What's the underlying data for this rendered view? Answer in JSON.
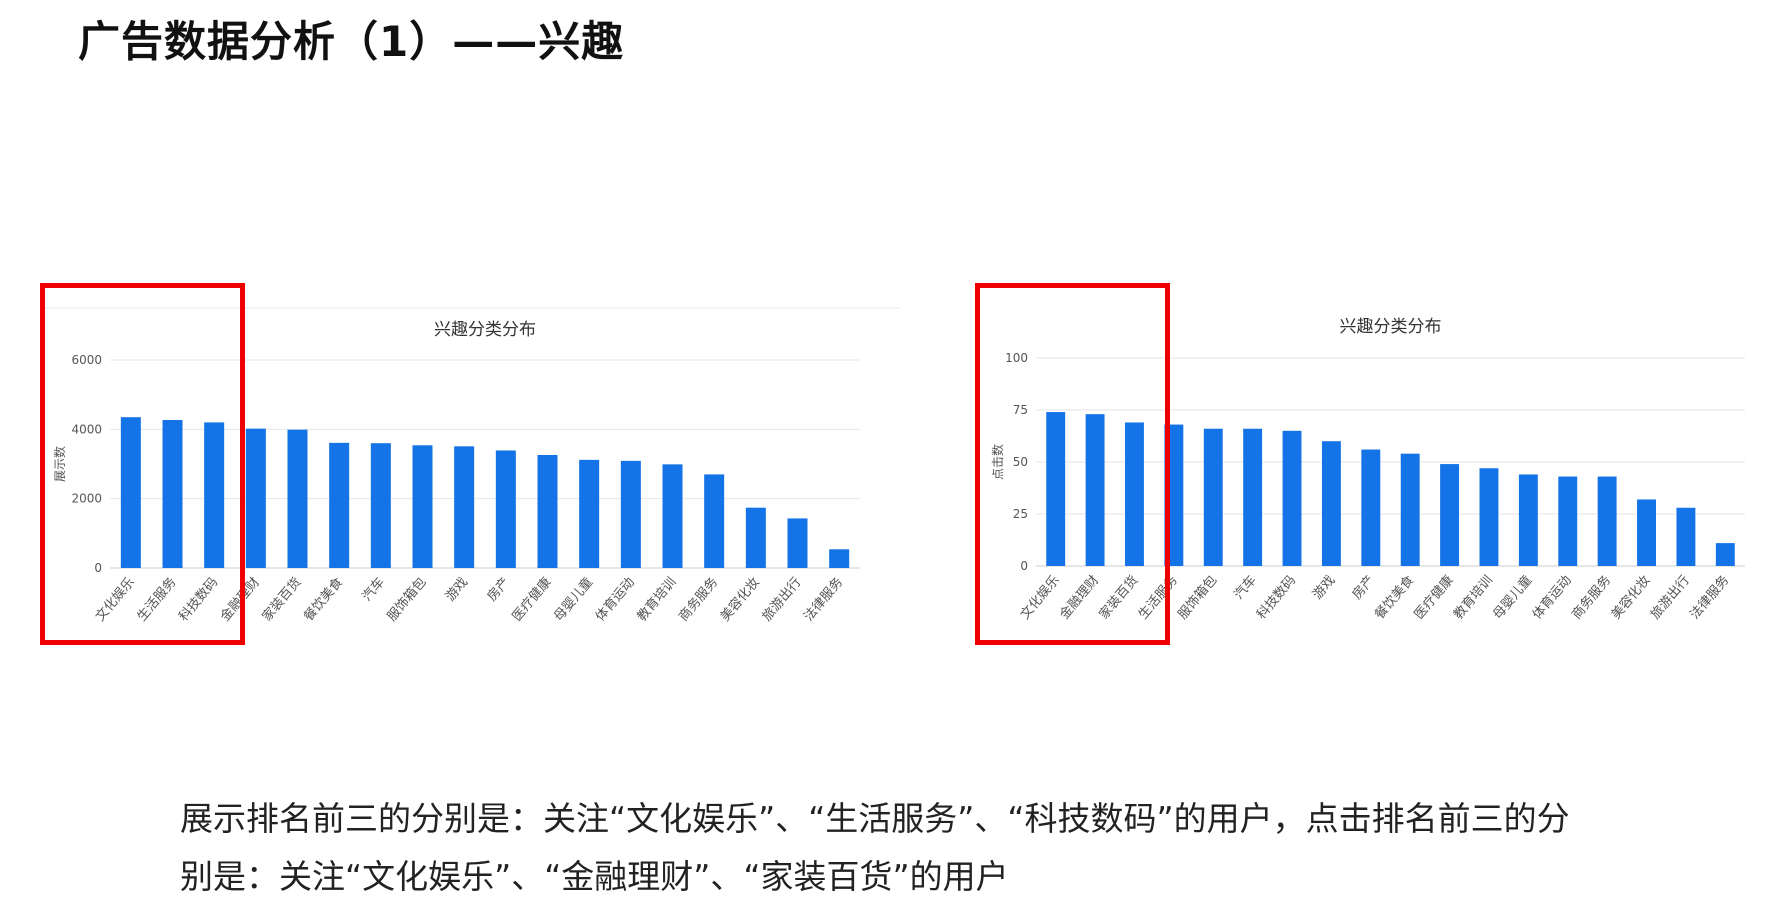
{
  "page": {
    "title": "广告数据分析（1）——兴趣",
    "conclusion": "展示排名前三的分别是：关注“文化娱乐”、“生活服务”、“科技数码”的用户，点击排名前三的分别是：关注“文化娱乐”、“金融理财”、“家装百货”的用户"
  },
  "colors": {
    "bar": "#1473e6",
    "highlight": "#ee0000"
  },
  "chart_data": [
    {
      "type": "bar",
      "title": "兴趣分类分布",
      "ylabel": "展示数",
      "xlabel": "",
      "ylim": [
        0,
        6000
      ],
      "yticks": [
        0,
        2000,
        4000,
        6000
      ],
      "grid": true,
      "categories": [
        "文化娱乐",
        "生活服务",
        "科技数码",
        "金融理财",
        "家装百货",
        "餐饮美食",
        "汽车",
        "服饰箱包",
        "游戏",
        "房产",
        "医疗健康",
        "母婴儿童",
        "体育运动",
        "教育培训",
        "商务服务",
        "美容化妆",
        "旅游出行",
        "法律服务"
      ],
      "values": [
        4350,
        4270,
        4200,
        4020,
        3990,
        3610,
        3600,
        3540,
        3510,
        3390,
        3260,
        3120,
        3090,
        2990,
        2700,
        1740,
        1430,
        540
      ],
      "highlighted": [
        "文化娱乐",
        "生活服务",
        "科技数码"
      ]
    },
    {
      "type": "bar",
      "title": "兴趣分类分布",
      "ylabel": "点击数",
      "xlabel": "",
      "ylim": [
        0,
        100
      ],
      "yticks": [
        0,
        25,
        50,
        75,
        100
      ],
      "grid": true,
      "categories": [
        "文化娱乐",
        "金融理财",
        "家装百货",
        "生活服务",
        "服饰箱包",
        "汽车",
        "科技数码",
        "游戏",
        "房产",
        "餐饮美食",
        "医疗健康",
        "教育培训",
        "母婴儿童",
        "体育运动",
        "商务服务",
        "美容化妆",
        "旅游出行",
        "法律服务"
      ],
      "values": [
        74,
        73,
        69,
        68,
        66,
        66,
        65,
        60,
        56,
        54,
        49,
        47,
        44,
        43,
        43,
        32,
        28,
        11
      ],
      "highlighted": [
        "文化娱乐",
        "金融理财",
        "家装百货"
      ]
    }
  ]
}
